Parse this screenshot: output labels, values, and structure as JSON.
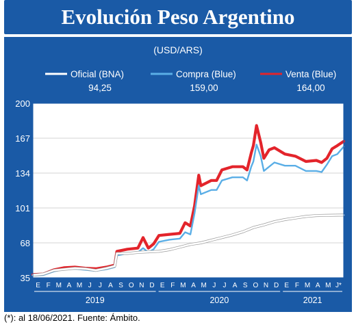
{
  "title": "Evolución Peso Argentino",
  "footnote": "(*): al 18/06/2021. Fuente: Ámbito.",
  "colors": {
    "panel_bg": "#1a5aa6",
    "plot_bg": "#ffffff",
    "oficial": "#ffffff",
    "compra": "#5aaee6",
    "venta": "#e3242b"
  },
  "chart_data": {
    "type": "line",
    "unit_label": "(USD/ARS)",
    "y_ticks": [
      35,
      68,
      101,
      134,
      167,
      200
    ],
    "ylim": [
      35,
      200
    ],
    "x_months": [
      "E",
      "F",
      "M",
      "A",
      "M",
      "J",
      "J",
      "A",
      "S",
      "O",
      "N",
      "D",
      "E",
      "F",
      "M",
      "A",
      "M",
      "J",
      "J",
      "A",
      "S",
      "O",
      "N",
      "D",
      "E",
      "F",
      "M",
      "A",
      "M",
      "J*"
    ],
    "x_years": [
      "2019",
      "2020",
      "2021"
    ],
    "xlim": [
      0,
      29.6
    ],
    "grid": "horizontal",
    "legend": [
      {
        "name": "Oficial (BNA)",
        "value_label": "94,25"
      },
      {
        "name": "Compra (Blue)",
        "value_label": "159,00"
      },
      {
        "name": "Venta (Blue)",
        "value_label": "164,00"
      }
    ],
    "series": [
      {
        "name": "Oficial (BNA)",
        "x": [
          0,
          1,
          2,
          3,
          4,
          5,
          6,
          7,
          7.8,
          8,
          9,
          10,
          11,
          12,
          13,
          14,
          15,
          16,
          17,
          18,
          19,
          20,
          21,
          22,
          23,
          24,
          25,
          26,
          27,
          28,
          29,
          29.6
        ],
        "y": [
          37.5,
          38.5,
          42,
          43,
          44,
          43.5,
          42,
          44,
          46,
          58,
          58,
          59,
          59.5,
          60,
          61.5,
          64,
          66.5,
          68,
          70.5,
          73,
          75.5,
          78.5,
          82.5,
          85,
          88,
          90,
          91.5,
          93,
          93.8,
          94,
          94.2,
          94.25
        ]
      },
      {
        "name": "Compra (Blue)",
        "x": [
          0,
          1,
          2,
          3,
          4,
          5,
          6,
          7,
          7.8,
          8,
          9,
          10,
          10.5,
          11,
          11.5,
          12,
          13,
          14,
          14.5,
          15,
          15.4,
          15.8,
          16,
          17,
          17.5,
          18,
          19,
          20,
          20.4,
          20.8,
          21,
          21.3,
          21.7,
          22,
          22.5,
          23,
          24,
          25,
          26,
          27,
          27.5,
          28,
          28.5,
          29,
          29.6
        ],
        "y": [
          37,
          37.5,
          41,
          43,
          43.5,
          42.5,
          41.5,
          43,
          45,
          56,
          58,
          59,
          63,
          59,
          62,
          69,
          71,
          72,
          78,
          76,
          96,
          122,
          114,
          118,
          118,
          127,
          130,
          130,
          127,
          140,
          145,
          161,
          150,
          136,
          140,
          144,
          141,
          141,
          136,
          136,
          135,
          142,
          150,
          152,
          159
        ]
      },
      {
        "name": "Venta (Blue)",
        "x": [
          0,
          1,
          2,
          3,
          4,
          5,
          6,
          7,
          7.8,
          8,
          9,
          10,
          10.5,
          11,
          11.5,
          12,
          13,
          14,
          14.5,
          15,
          15.4,
          15.8,
          16,
          17,
          17.5,
          18,
          19,
          20,
          20.4,
          20.8,
          21,
          21.3,
          21.7,
          22,
          22.5,
          23,
          24,
          25,
          26,
          27,
          27.5,
          28,
          28.5,
          29,
          29.6
        ],
        "y": [
          38,
          38.5,
          42.5,
          44.5,
          45,
          44,
          43.5,
          45,
          47,
          60,
          62,
          63,
          73,
          63,
          67,
          75,
          76,
          77,
          87,
          84,
          103,
          132,
          122,
          127,
          127,
          137,
          140,
          140,
          137,
          153,
          160,
          179,
          163,
          148,
          156,
          158,
          152,
          150,
          145,
          146,
          144,
          148,
          157,
          160,
          164
        ]
      }
    ]
  }
}
